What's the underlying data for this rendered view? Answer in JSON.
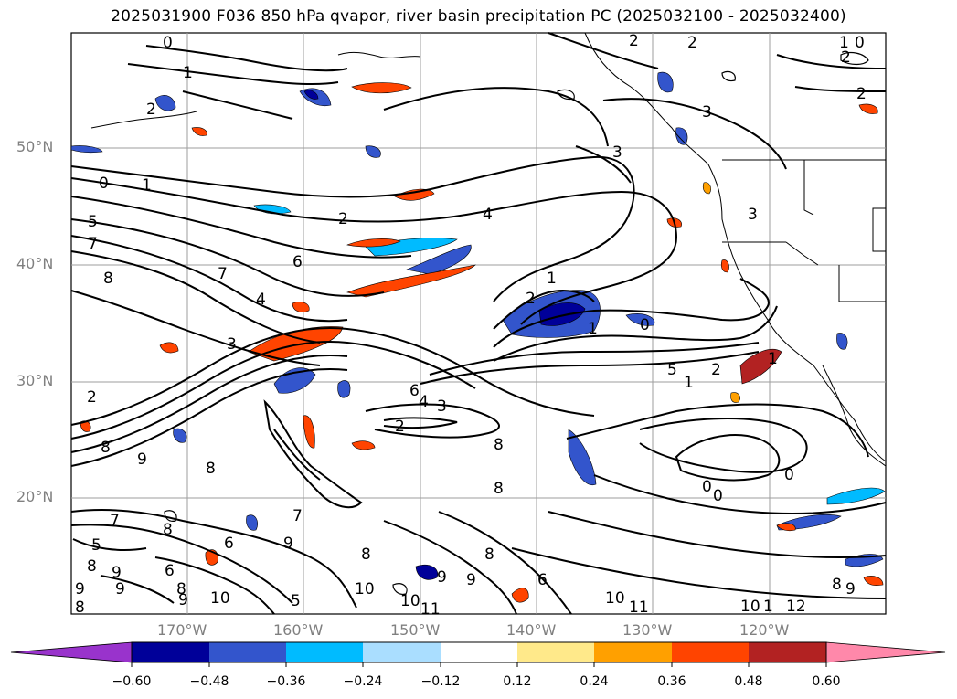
{
  "title": "2025031900 F036 850 hPa qvapor, river basin precipitation PC (2025032100 - 2025032400)",
  "map": {
    "lat_labels": [
      "50°N",
      "40°N",
      "30°N",
      "20°N"
    ],
    "lon_labels": [
      "170°W",
      "160°W",
      "150°W",
      "140°W",
      "130°W",
      "120°W"
    ],
    "contour_labels": [
      "0",
      "1",
      "2",
      "3",
      "4",
      "5",
      "6",
      "7",
      "8",
      "9",
      "10",
      "11",
      "12"
    ],
    "line_color": "#000000",
    "grid_color": "#9e9e9e",
    "land_outline_color": "#000000"
  },
  "colorbar": {
    "ticks": [
      "−0.60",
      "−0.48",
      "−0.36",
      "−0.24",
      "−0.12",
      "0.12",
      "0.24",
      "0.36",
      "0.48",
      "0.60"
    ],
    "colors": [
      "#9933cc",
      "#000099",
      "#3355cc",
      "#00bbff",
      "#aadeff",
      "#ffffff",
      "#ffe98a",
      "#ffa000",
      "#ff4400",
      "#b22222",
      "#ff88aa"
    ]
  }
}
